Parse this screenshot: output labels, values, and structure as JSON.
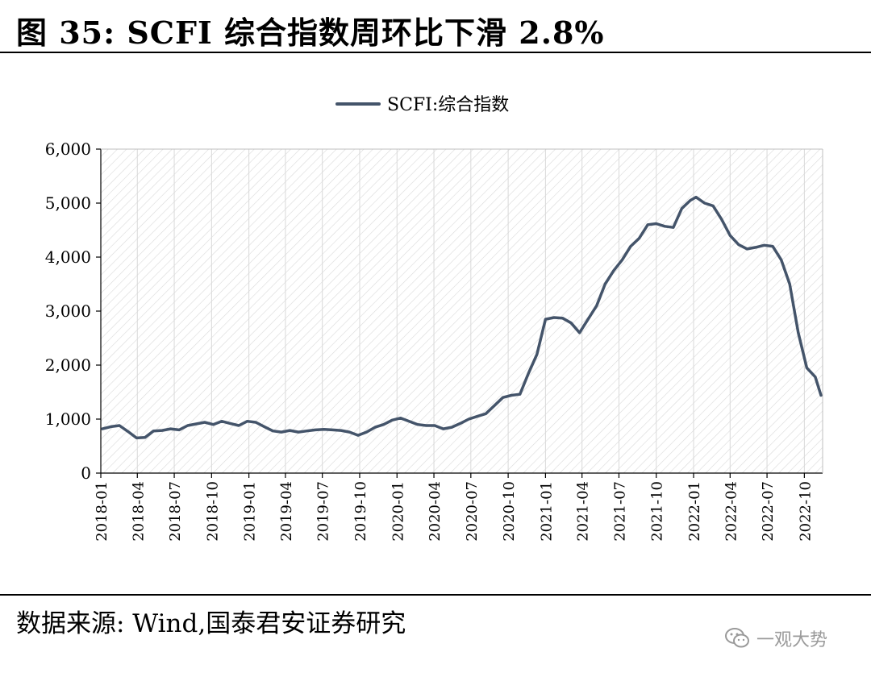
{
  "title": "图 35:  SCFI 综合指数周环比下滑 2.8%",
  "source": "数据来源:  Wind,国泰君安证券研究",
  "watermark": "一观大势",
  "watermark_icon": "wechat-icon",
  "colors": {
    "line": "#44546a",
    "grid_hatch": "#d9d9d9",
    "axis": "#000000"
  },
  "chart_data": {
    "type": "line",
    "title": "",
    "xlabel": "",
    "ylabel": "",
    "ylim": [
      0,
      6000
    ],
    "y_ticks": [
      0,
      1000,
      2000,
      3000,
      4000,
      5000,
      6000
    ],
    "y_tick_labels": [
      "0",
      "1,000",
      "2,000",
      "3,000",
      "4,000",
      "5,000",
      "6,000"
    ],
    "x_ticks": [
      "2018-01",
      "2018-04",
      "2018-07",
      "2018-10",
      "2019-01",
      "2019-04",
      "2019-07",
      "2019-10",
      "2020-01",
      "2020-04",
      "2020-07",
      "2020-10",
      "2021-01",
      "2021-04",
      "2021-07",
      "2021-10",
      "2022-01",
      "2022-04",
      "2022-07",
      "2022-10"
    ],
    "legend_position": "top-center",
    "grid": false,
    "background": "diagonal-hatch",
    "series": [
      {
        "name": "SCFI:综合指数",
        "x": [
          "2018-01-05",
          "2018-01-26",
          "2018-02-16",
          "2018-03-09",
          "2018-03-30",
          "2018-04-20",
          "2018-05-11",
          "2018-06-01",
          "2018-06-22",
          "2018-07-13",
          "2018-08-03",
          "2018-08-24",
          "2018-09-14",
          "2018-10-05",
          "2018-10-26",
          "2018-11-16",
          "2018-12-07",
          "2018-12-28",
          "2019-01-18",
          "2019-02-08",
          "2019-03-01",
          "2019-03-22",
          "2019-04-12",
          "2019-05-03",
          "2019-05-24",
          "2019-06-14",
          "2019-07-05",
          "2019-07-26",
          "2019-08-16",
          "2019-09-06",
          "2019-09-27",
          "2019-10-18",
          "2019-11-08",
          "2019-11-29",
          "2019-12-20",
          "2020-01-10",
          "2020-01-31",
          "2020-02-21",
          "2020-03-13",
          "2020-04-03",
          "2020-04-24",
          "2020-05-15",
          "2020-06-05",
          "2020-06-26",
          "2020-07-17",
          "2020-08-07",
          "2020-08-28",
          "2020-09-18",
          "2020-10-09",
          "2020-10-30",
          "2020-11-20",
          "2020-12-11",
          "2021-01-01",
          "2021-01-22",
          "2021-02-12",
          "2021-03-05",
          "2021-03-26",
          "2021-04-16",
          "2021-05-07",
          "2021-05-28",
          "2021-06-18",
          "2021-07-09",
          "2021-07-30",
          "2021-08-20",
          "2021-09-10",
          "2021-10-01",
          "2021-10-22",
          "2021-11-12",
          "2021-12-03",
          "2021-12-24",
          "2022-01-07",
          "2022-01-28",
          "2022-02-18",
          "2022-03-11",
          "2022-04-01",
          "2022-04-22",
          "2022-05-13",
          "2022-06-03",
          "2022-06-24",
          "2022-07-15",
          "2022-08-05",
          "2022-08-26",
          "2022-09-16",
          "2022-10-07",
          "2022-10-28",
          "2022-11-11"
        ],
        "values": [
          820,
          860,
          880,
          770,
          650,
          660,
          780,
          790,
          820,
          800,
          880,
          910,
          940,
          900,
          960,
          920,
          880,
          960,
          940,
          860,
          780,
          760,
          790,
          760,
          780,
          800,
          810,
          800,
          790,
          760,
          700,
          760,
          850,
          900,
          980,
          1020,
          960,
          900,
          880,
          880,
          820,
          850,
          920,
          1000,
          1050,
          1100,
          1250,
          1400,
          1440,
          1460,
          1850,
          2200,
          2850,
          2880,
          2870,
          2780,
          2600,
          2850,
          3100,
          3500,
          3750,
          3950,
          4200,
          4350,
          4600,
          4620,
          4570,
          4550,
          4900,
          5050,
          5110,
          5000,
          4950,
          4700,
          4400,
          4230,
          4150,
          4180,
          4220,
          4200,
          3950,
          3500,
          2600,
          1950,
          1780,
          1440
        ]
      }
    ]
  }
}
